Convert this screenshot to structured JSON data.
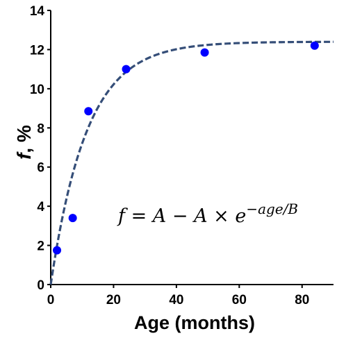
{
  "chart_data": {
    "type": "scatter",
    "xlabel": "Age (months)",
    "ylabel_main": "f",
    "ylabel_unit": ", %",
    "xlim": [
      0,
      90
    ],
    "ylim": [
      0,
      14
    ],
    "x_ticks": [
      0,
      20,
      40,
      60,
      80
    ],
    "y_ticks": [
      0,
      2,
      4,
      6,
      8,
      10,
      12,
      14
    ],
    "grid": false,
    "series": [
      {
        "type": "scatter",
        "color": "#0000ff",
        "points": [
          {
            "x": 2,
            "y": 1.75
          },
          {
            "x": 7,
            "y": 3.4
          },
          {
            "x": 12,
            "y": 8.85
          },
          {
            "x": 24,
            "y": 11.0
          },
          {
            "x": 49,
            "y": 11.85
          },
          {
            "x": 84,
            "y": 12.2
          }
        ]
      },
      {
        "type": "line",
        "style": "dashed",
        "color": "#354e78",
        "model": "f = A - A*exp(-age/B)",
        "A": 12.4,
        "B": 11.5
      }
    ],
    "annotation": {
      "f": "f",
      "eq": " = ",
      "A1": "A",
      "minus": " − ",
      "A2": "A",
      "times": " × ",
      "e": "e",
      "exponent": "−age/B"
    }
  }
}
